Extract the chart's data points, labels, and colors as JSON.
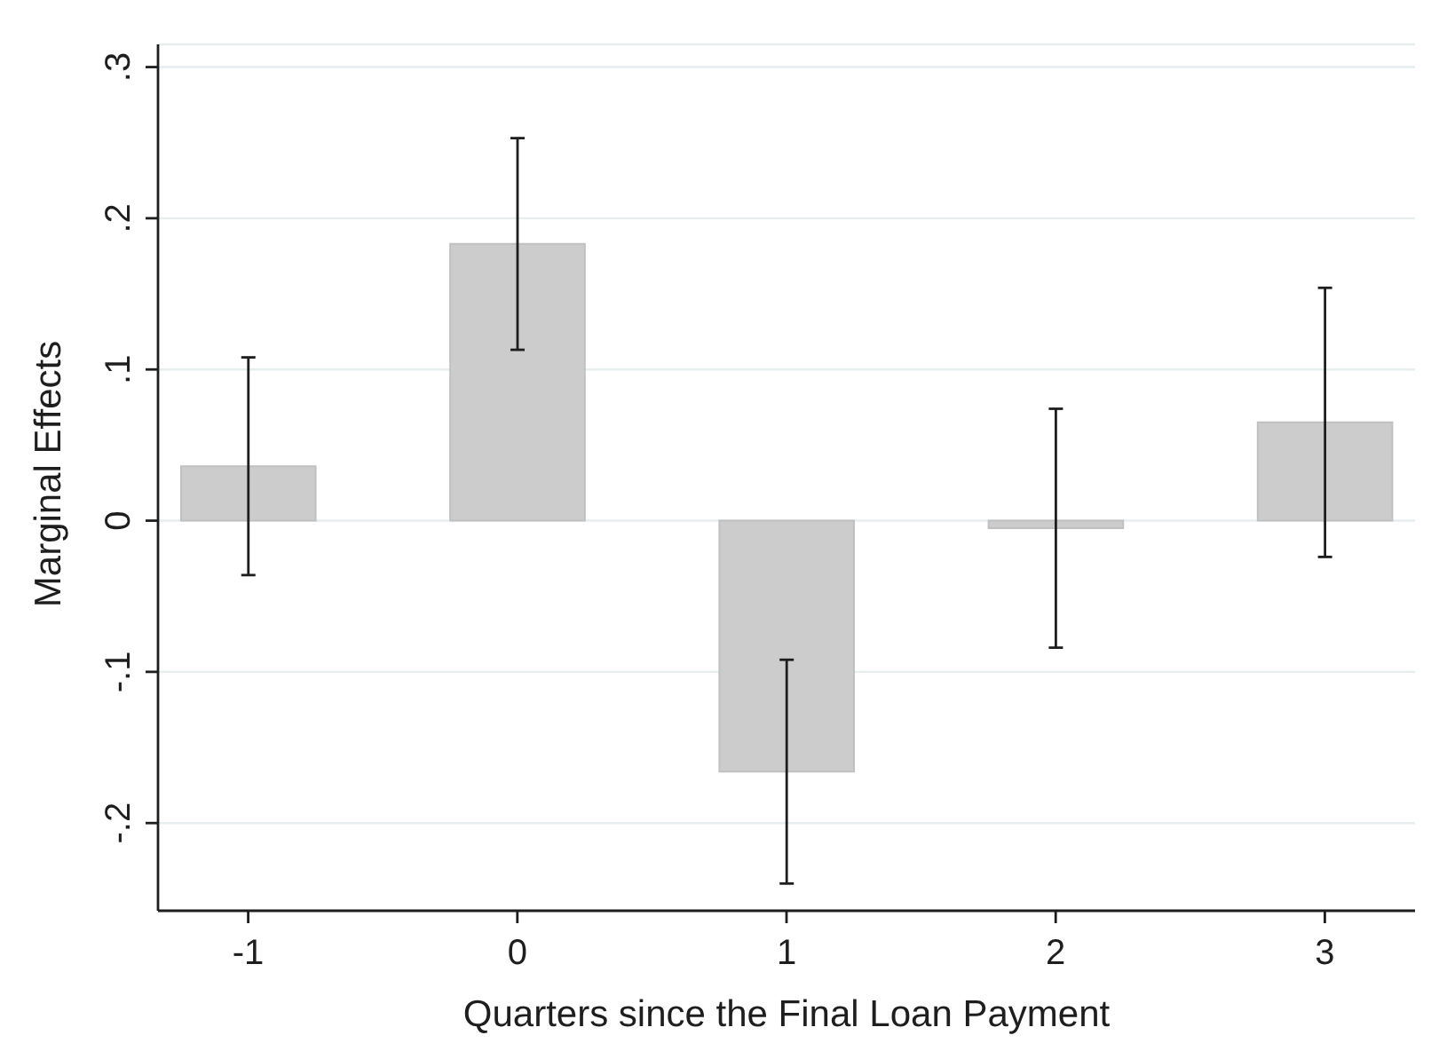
{
  "chart_data": {
    "type": "bar",
    "xlabel": "Quarters since the Final Loan Payment",
    "ylabel": "Marginal Effects",
    "x": [
      -1,
      0,
      1,
      2,
      3
    ],
    "values": [
      0.036,
      0.183,
      -0.166,
      -0.005,
      0.065
    ],
    "errors": [
      0.072,
      0.07,
      0.074,
      0.079,
      0.089
    ],
    "color": "#cccccc",
    "xlim": [
      -1.335,
      3.335
    ],
    "xticks": [
      -1,
      0,
      1,
      2,
      3
    ],
    "ylim": [
      -0.258,
      0.315
    ],
    "yticks": [
      {
        "value": -0.2,
        "label": "-.2"
      },
      {
        "value": -0.1,
        "label": "-.1"
      },
      0,
      {
        "value": 0.1,
        "label": ".1"
      },
      {
        "value": 0.2,
        "label": ".2"
      },
      {
        "value": 0.3,
        "label": ".3"
      }
    ],
    "grid": "y"
  }
}
